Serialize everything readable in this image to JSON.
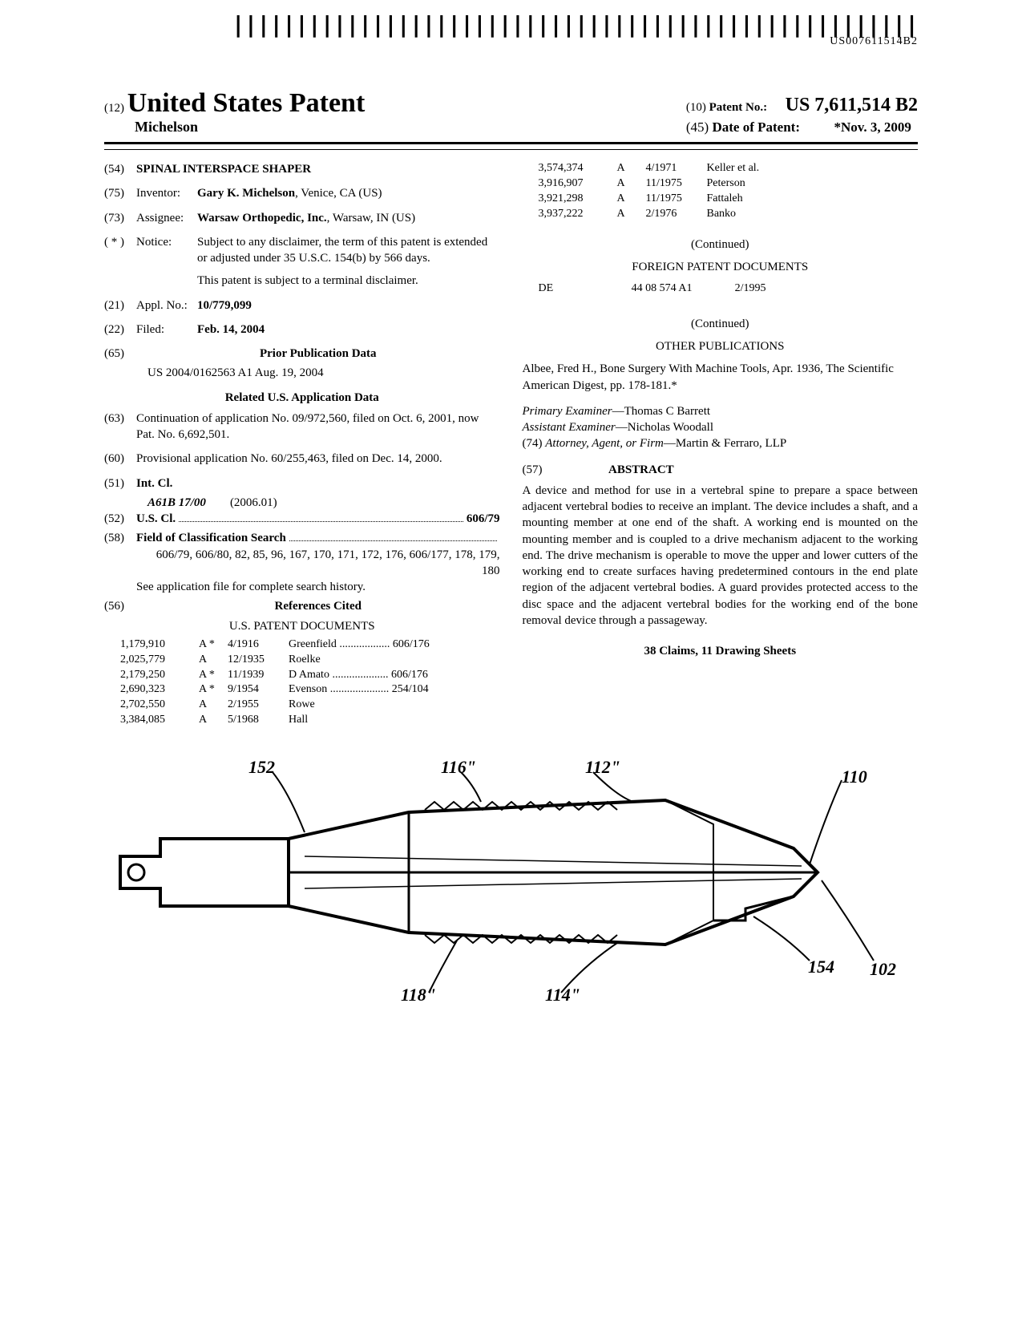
{
  "barcode_text": "US007611514B2",
  "header": {
    "code12": "(12)",
    "country_title": "United States Patent",
    "author": "Michelson",
    "code10": "(10)",
    "patno_label": "Patent No.:",
    "patno": "US 7,611,514 B2",
    "code45": "(45)",
    "date_label": "Date of Patent:",
    "date": "*Nov. 3, 2009"
  },
  "left": {
    "f54": {
      "num": "(54)",
      "val": "SPINAL INTERSPACE SHAPER"
    },
    "f75": {
      "num": "(75)",
      "lab": "Inventor:",
      "val_bold": "Gary K. Michelson",
      "val_rest": ", Venice, CA (US)"
    },
    "f73": {
      "num": "(73)",
      "lab": "Assignee:",
      "val_bold": "Warsaw Orthopedic, Inc.",
      "val_rest": ", Warsaw, IN (US)"
    },
    "fnotice": {
      "num": "( * )",
      "lab": "Notice:",
      "val1": "Subject to any disclaimer, the term of this patent is extended or adjusted under 35 U.S.C. 154(b) by 566 days.",
      "val2": "This patent is subject to a terminal disclaimer."
    },
    "f21": {
      "num": "(21)",
      "lab": "Appl. No.:",
      "val": "10/779,099"
    },
    "f22": {
      "num": "(22)",
      "lab": "Filed:",
      "val": "Feb. 14, 2004"
    },
    "f65": {
      "num": "(65)",
      "head": "Prior Publication Data",
      "line": "US 2004/0162563 A1      Aug. 19, 2004"
    },
    "related_head": "Related U.S. Application Data",
    "f63": {
      "num": "(63)",
      "val": "Continuation of application No. 09/972,560, filed on Oct. 6, 2001, now Pat. No. 6,692,501."
    },
    "f60": {
      "num": "(60)",
      "val": "Provisional application No. 60/255,463, filed on Dec. 14, 2000."
    },
    "f51": {
      "num": "(51)",
      "lab": "Int. Cl.",
      "line1_l": "A61B 17/00",
      "line1_r": "(2006.01)"
    },
    "f52": {
      "num": "(52)",
      "lab": "U.S. Cl.",
      "val": "606/79"
    },
    "f58": {
      "num": "(58)",
      "lab": "Field of Classification Search",
      "val1": "606/79, 606/80, 82, 85, 96, 167, 170, 171, 172, 176, 606/177, 178, 179, 180",
      "val2": "See application file for complete search history."
    },
    "f56": {
      "num": "(56)",
      "head": "References Cited"
    },
    "us_docs_head": "U.S. PATENT DOCUMENTS",
    "us_docs": [
      {
        "c1": "1,179,910",
        "c2": "A *",
        "c3": "4/1916",
        "c4": "Greenfield .................. 606/176"
      },
      {
        "c1": "2,025,779",
        "c2": "A",
        "c3": "12/1935",
        "c4": "Roelke"
      },
      {
        "c1": "2,179,250",
        "c2": "A *",
        "c3": "11/1939",
        "c4": "D Amato .................... 606/176"
      },
      {
        "c1": "2,690,323",
        "c2": "A *",
        "c3": "9/1954",
        "c4": "Evenson ..................... 254/104"
      },
      {
        "c1": "2,702,550",
        "c2": "A",
        "c3": "2/1955",
        "c4": "Rowe"
      },
      {
        "c1": "3,384,085",
        "c2": "A",
        "c3": "5/1968",
        "c4": "Hall"
      }
    ]
  },
  "right": {
    "more_docs": [
      {
        "c1": "3,574,374",
        "c2": "A",
        "c3": "4/1971",
        "c4": "Keller et al."
      },
      {
        "c1": "3,916,907",
        "c2": "A",
        "c3": "11/1975",
        "c4": "Peterson"
      },
      {
        "c1": "3,921,298",
        "c2": "A",
        "c3": "11/1975",
        "c4": "Fattaleh"
      },
      {
        "c1": "3,937,222",
        "c2": "A",
        "c3": "2/1976",
        "c4": "Banko"
      }
    ],
    "continued1": "(Continued)",
    "foreign_head": "FOREIGN PATENT DOCUMENTS",
    "foreign": {
      "c0": "DE",
      "c1": "44 08 574 A1",
      "c3": "2/1995"
    },
    "continued2": "(Continued)",
    "other_head": "OTHER PUBLICATIONS",
    "other_text": "Albee, Fred H., Bone Surgery With Machine Tools, Apr. 1936, The Scientific American Digest, pp. 178-181.*",
    "examiner_l": "Primary Examiner",
    "examiner_v": "—Thomas C Barrett",
    "asst_l": "Assistant Examiner",
    "asst_v": "—Nicholas Woodall",
    "atty_num": "(74)",
    "atty_l": "Attorney, Agent, or Firm",
    "atty_v": "—Martin & Ferraro, LLP",
    "abs_num": "(57)",
    "abs_head": "ABSTRACT",
    "abs_body": "A device and method for use in a vertebral spine to prepare a space between adjacent vertebral bodies to receive an implant. The device includes a shaft, and a mounting member at one end of the shaft. A working end is mounted on the mounting member and is coupled to a drive mechanism adjacent to the working end. The drive mechanism is operable to move the upper and lower cutters of the working end to create surfaces having predetermined contours in the end plate region of the adjacent vertebral bodies. A guard provides protected access to the disc space and the adjacent vertebral bodies for the working end of the bone removal device through a passageway.",
    "claims": "38 Claims, 11 Drawing Sheets"
  },
  "figure": {
    "labels": {
      "l152": "152",
      "l116": "116\"",
      "l112": "112\"",
      "l110": "110",
      "l118": "118\"",
      "l114": "114\"",
      "l154": "154",
      "l102": "102"
    },
    "stroke": "#000000",
    "fill": "#ffffff"
  }
}
